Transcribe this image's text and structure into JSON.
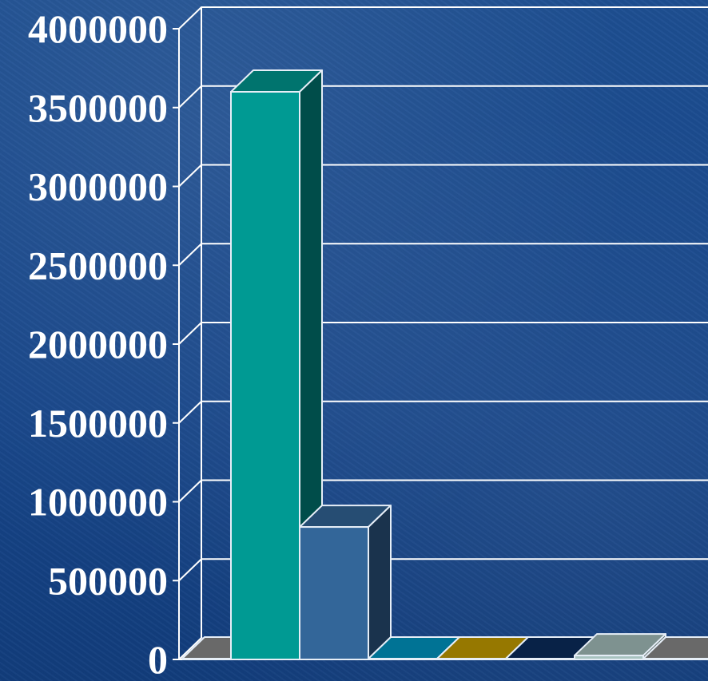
{
  "chart_data": {
    "type": "bar",
    "title": "",
    "xlabel": "",
    "ylabel": "",
    "ylim": [
      0,
      4000000
    ],
    "yticks": [
      0,
      500000,
      1000000,
      1500000,
      2000000,
      2500000,
      3000000,
      3500000,
      4000000
    ],
    "grid": true,
    "legend": "none",
    "three_d": true,
    "bars": [
      {
        "value": 0,
        "color": "#8c8c8c"
      },
      {
        "value": 3600000,
        "color": "#009a93"
      },
      {
        "value": 840000,
        "color": "#336699"
      },
      {
        "value": 2000,
        "color": "#0099c6"
      },
      {
        "value": 2000,
        "color": "#c8a000"
      },
      {
        "value": 2000,
        "color": "#0b2d5e"
      },
      {
        "value": 25000,
        "color": "#a8c3c0"
      },
      {
        "value": 0,
        "color": "#8c8c8c"
      }
    ]
  }
}
